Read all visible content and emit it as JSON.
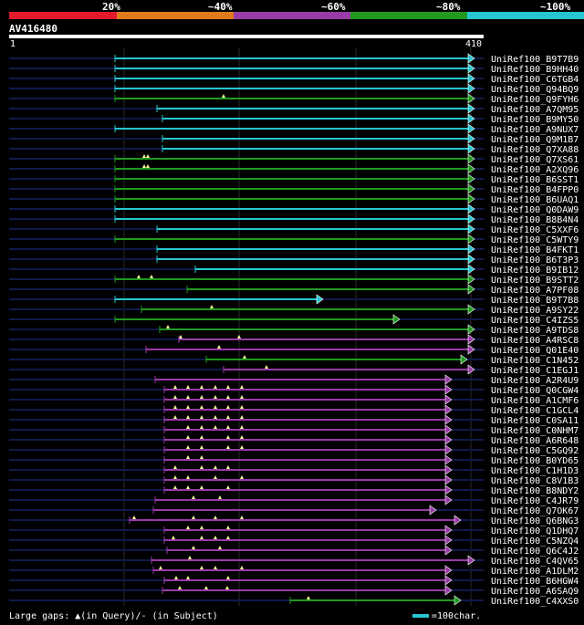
{
  "legend": {
    "labels": [
      "20%",
      "~40%",
      "~60%",
      "~80%",
      "~100%"
    ],
    "colors": [
      "#e31a2b",
      "#e07a1a",
      "#9a3aa8",
      "#1f9a1f",
      "#26c6d0"
    ]
  },
  "query": {
    "name": "AV416480",
    "start_label": "1",
    "end_label": "410",
    "length": 410
  },
  "hits": [
    {
      "name": "UniRef100_B9T7B9",
      "start": 126,
      "end": 520,
      "color": "#26c6d0",
      "gaps": [],
      "arrow": true
    },
    {
      "name": "UniRef100_B9HH40",
      "start": 126,
      "end": 520,
      "color": "#26c6d0",
      "gaps": [],
      "arrow": true
    },
    {
      "name": "UniRef100_C6TGB4",
      "start": 126,
      "end": 520,
      "color": "#26c6d0",
      "gaps": [],
      "arrow": true
    },
    {
      "name": "UniRef100_Q94BQ9",
      "start": 126,
      "end": 520,
      "color": "#26c6d0",
      "gaps": [],
      "arrow": true
    },
    {
      "name": "UniRef100_Q9FYH6",
      "start": 126,
      "end": 520,
      "color": "#1f9a1f",
      "gaps": [
        245
      ],
      "arrow": true
    },
    {
      "name": "UniRef100_A7QM95",
      "start": 172,
      "end": 520,
      "color": "#26c6d0",
      "gaps": [],
      "arrow": true
    },
    {
      "name": "UniRef100_B9MY50",
      "start": 178,
      "end": 520,
      "color": "#26c6d0",
      "gaps": [],
      "arrow": true
    },
    {
      "name": "UniRef100_A9NUX7",
      "start": 126,
      "end": 520,
      "color": "#26c6d0",
      "gaps": [],
      "arrow": true
    },
    {
      "name": "UniRef100_Q9M1B7",
      "start": 178,
      "end": 520,
      "color": "#26c6d0",
      "gaps": [],
      "arrow": true
    },
    {
      "name": "UniRef100_Q7XA88",
      "start": 178,
      "end": 520,
      "color": "#26c6d0",
      "gaps": [],
      "arrow": true
    },
    {
      "name": "UniRef100_Q7XS61",
      "start": 126,
      "end": 520,
      "color": "#1f9a1f",
      "gaps": [
        158,
        162
      ],
      "arrow": true
    },
    {
      "name": "UniRef100_A2XQ96",
      "start": 126,
      "end": 520,
      "color": "#1f9a1f",
      "gaps": [
        158,
        162
      ],
      "arrow": true
    },
    {
      "name": "UniRef100_B6SST1",
      "start": 126,
      "end": 520,
      "color": "#1f9a1f",
      "gaps": [],
      "arrow": true
    },
    {
      "name": "UniRef100_B4FPP0",
      "start": 126,
      "end": 520,
      "color": "#1f9a1f",
      "gaps": [],
      "arrow": true
    },
    {
      "name": "UniRef100_B6UAQ1",
      "start": 126,
      "end": 520,
      "color": "#1f9a1f",
      "gaps": [],
      "arrow": true
    },
    {
      "name": "UniRef100_Q0DAW9",
      "start": 126,
      "end": 520,
      "color": "#26c6d0",
      "gaps": [],
      "arrow": true
    },
    {
      "name": "UniRef100_B8B4N4",
      "start": 126,
      "end": 520,
      "color": "#26c6d0",
      "gaps": [],
      "arrow": true
    },
    {
      "name": "UniRef100_C5XXF6",
      "start": 172,
      "end": 520,
      "color": "#26c6d0",
      "gaps": [],
      "arrow": true
    },
    {
      "name": "UniRef100_C5WTY9",
      "start": 126,
      "end": 520,
      "color": "#1f9a1f",
      "gaps": [],
      "arrow": true
    },
    {
      "name": "UniRef100_B4FKT1",
      "start": 172,
      "end": 520,
      "color": "#26c6d0",
      "gaps": [],
      "arrow": true
    },
    {
      "name": "UniRef100_B6T3P3",
      "start": 172,
      "end": 520,
      "color": "#26c6d0",
      "gaps": [],
      "arrow": true
    },
    {
      "name": "UniRef100_B9IB12",
      "start": 214,
      "end": 520,
      "color": "#26c6d0",
      "gaps": [],
      "arrow": true
    },
    {
      "name": "UniRef100_B9STT2",
      "start": 126,
      "end": 520,
      "color": "#1f9a1f",
      "gaps": [
        152,
        166
      ],
      "arrow": true
    },
    {
      "name": "UniRef100_A7PF08",
      "start": 205,
      "end": 520,
      "color": "#1f9a1f",
      "gaps": [],
      "arrow": true
    },
    {
      "name": "UniRef100_B9T7B8",
      "start": 126,
      "end": 354,
      "color": "#26c6d0",
      "gaps": [],
      "arrow": true
    },
    {
      "name": "UniRef100_A9SY22",
      "start": 155,
      "end": 520,
      "color": "#1f9a1f",
      "gaps": [
        232
      ],
      "arrow": true
    },
    {
      "name": "UniRef100_C4IZS5",
      "start": 126,
      "end": 438,
      "color": "#1f9a1f",
      "gaps": [],
      "arrow": true
    },
    {
      "name": "UniRef100_A9TDS8",
      "start": 175,
      "end": 520,
      "color": "#1f9a1f",
      "gaps": [
        184
      ],
      "arrow": true
    },
    {
      "name": "UniRef100_A4RSC8",
      "start": 196,
      "end": 520,
      "color": "#9a3aa8",
      "gaps": [
        198,
        262
      ],
      "arrow": true
    },
    {
      "name": "UniRef100_Q01E40",
      "start": 160,
      "end": 520,
      "color": "#9a3aa8",
      "gaps": [
        240
      ],
      "arrow": true
    },
    {
      "name": "UniRef100_C1N452",
      "start": 226,
      "end": 512,
      "color": "#1f9a1f",
      "gaps": [
        268
      ],
      "arrow": true
    },
    {
      "name": "UniRef100_C1EGJ1",
      "start": 245,
      "end": 520,
      "color": "#9a3aa8",
      "gaps": [
        292
      ],
      "arrow": true
    },
    {
      "name": "UniRef100_A2R4U9",
      "start": 170,
      "end": 495,
      "color": "#9a3aa8",
      "gaps": [],
      "arrow": true
    },
    {
      "name": "UniRef100_Q0CGW4",
      "start": 180,
      "end": 495,
      "color": "#9a3aa8",
      "gaps": [
        192,
        206,
        221,
        236,
        250,
        265
      ],
      "arrow": true
    },
    {
      "name": "UniRef100_A1CMF6",
      "start": 180,
      "end": 495,
      "color": "#9a3aa8",
      "gaps": [
        192,
        206,
        221,
        236,
        250,
        265
      ],
      "arrow": true
    },
    {
      "name": "UniRef100_C1GCL4",
      "start": 180,
      "end": 495,
      "color": "#9a3aa8",
      "gaps": [
        192,
        206,
        221,
        236,
        250,
        265
      ],
      "arrow": true
    },
    {
      "name": "UniRef100_C0SA11",
      "start": 180,
      "end": 495,
      "color": "#9a3aa8",
      "gaps": [
        192,
        206,
        221,
        236,
        250,
        265
      ],
      "arrow": true
    },
    {
      "name": "UniRef100_C0NHM7",
      "start": 180,
      "end": 495,
      "color": "#9a3aa8",
      "gaps": [
        206,
        221,
        236,
        250,
        265
      ],
      "arrow": true
    },
    {
      "name": "UniRef100_A6R648",
      "start": 180,
      "end": 495,
      "color": "#9a3aa8",
      "gaps": [
        206,
        221,
        250,
        265
      ],
      "arrow": true
    },
    {
      "name": "UniRef100_C5GQ92",
      "start": 180,
      "end": 495,
      "color": "#9a3aa8",
      "gaps": [
        206,
        221,
        250,
        265
      ],
      "arrow": true
    },
    {
      "name": "UniRef100_B0YD65",
      "start": 180,
      "end": 495,
      "color": "#9a3aa8",
      "gaps": [
        206,
        221
      ],
      "arrow": true
    },
    {
      "name": "UniRef100_C1H1D3",
      "start": 180,
      "end": 495,
      "color": "#9a3aa8",
      "gaps": [
        192,
        221,
        236,
        250
      ],
      "arrow": true
    },
    {
      "name": "UniRef100_C8V1B3",
      "start": 180,
      "end": 495,
      "color": "#9a3aa8",
      "gaps": [
        192,
        206,
        236,
        265
      ],
      "arrow": true
    },
    {
      "name": "UniRef100_B8NDY2",
      "start": 180,
      "end": 495,
      "color": "#9a3aa8",
      "gaps": [
        192,
        206,
        221,
        250
      ],
      "arrow": true
    },
    {
      "name": "UniRef100_C4JR79",
      "start": 170,
      "end": 495,
      "color": "#9a3aa8",
      "gaps": [
        212,
        241
      ],
      "arrow": true
    },
    {
      "name": "UniRef100_Q7OK67",
      "start": 168,
      "end": 478,
      "color": "#9a3aa8",
      "gaps": [],
      "arrow": true
    },
    {
      "name": "UniRef100_Q6BNG3",
      "start": 142,
      "end": 505,
      "color": "#9a3aa8",
      "gaps": [
        147,
        212,
        236,
        265
      ],
      "arrow": true
    },
    {
      "name": "UniRef100_Q1DHQ7",
      "start": 180,
      "end": 495,
      "color": "#9a3aa8",
      "gaps": [
        206,
        221,
        250
      ],
      "arrow": true
    },
    {
      "name": "UniRef100_C5NZQ4",
      "start": 180,
      "end": 495,
      "color": "#9a3aa8",
      "gaps": [
        190,
        221,
        236,
        250
      ],
      "arrow": true
    },
    {
      "name": "UniRef100_Q6C4J2",
      "start": 183,
      "end": 495,
      "color": "#9a3aa8",
      "gaps": [
        212,
        241
      ],
      "arrow": true
    },
    {
      "name": "UniRef100_C4QV65",
      "start": 166,
      "end": 520,
      "color": "#9a3aa8",
      "gaps": [
        208
      ],
      "arrow": true
    },
    {
      "name": "UniRef100_A1DLM2",
      "start": 168,
      "end": 495,
      "color": "#9a3aa8",
      "gaps": [
        176,
        221,
        236,
        265
      ],
      "arrow": true
    },
    {
      "name": "UniRef100_B6HGW4",
      "start": 180,
      "end": 495,
      "color": "#9a3aa8",
      "gaps": [
        193,
        206,
        250
      ],
      "arrow": true
    },
    {
      "name": "UniRef100_A6SAQ9",
      "start": 178,
      "end": 495,
      "color": "#9a3aa8",
      "gaps": [
        197,
        226,
        249
      ],
      "arrow": true
    },
    {
      "name": "UniRef100_C4XXS0",
      "start": 318,
      "end": 505,
      "color": "#1f9a1f",
      "gaps": [
        338
      ],
      "arrow": true
    }
  ],
  "footer": {
    "gaps_text": "Large gaps: ▲(in Query)/- (in Subject)",
    "scale_text": "=100char."
  }
}
